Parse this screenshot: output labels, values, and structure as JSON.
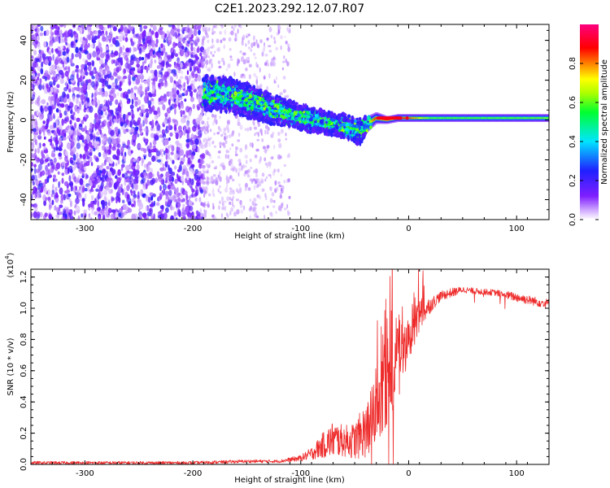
{
  "title": "C2E1.2023.292.12.07.R07",
  "colors": {
    "snr_line": "#ee2b2b",
    "speckle": "#8a2be2",
    "frame": "#000000"
  },
  "colorbar": {
    "label": "Normalized spectral amplitude",
    "range": [
      0.0,
      1.0
    ],
    "ticks": [
      0.0,
      0.2,
      0.4,
      0.6,
      0.8
    ],
    "tick_labels": [
      "0.0",
      "0.2",
      "0.4",
      "0.6",
      "0.8"
    ],
    "colormap": "rainbow (white → violet → blue → cyan → green → yellow → orange → red → magenta)"
  },
  "chart_data": [
    {
      "type": "heatmap",
      "panel": "top",
      "xlabel": "Height of straight line (km)",
      "ylabel": "Frequency (Hz)",
      "xlim": [
        -350,
        130
      ],
      "ylim": [
        -50,
        48
      ],
      "x_ticks": [
        -300,
        -200,
        -100,
        0,
        100
      ],
      "x_tick_labels": [
        "-300",
        "-200",
        "-100",
        "0",
        "100"
      ],
      "y_ticks": [
        -40,
        -20,
        0,
        20,
        40
      ],
      "y_tick_labels": [
        "-40",
        "-20",
        "0",
        "20",
        "40"
      ],
      "signal_trace": {
        "description": "Doppler trace",
        "x": [
          -190,
          -170,
          -150,
          -130,
          -110,
          -90,
          -70,
          -55,
          -45,
          -38,
          -30,
          -20,
          -10,
          0,
          20,
          60,
          100,
          130
        ],
        "y": [
          14,
          13,
          10,
          6,
          3,
          0,
          -2,
          -4,
          -6,
          -2,
          1,
          0,
          1,
          1,
          1,
          1,
          1,
          1
        ],
        "amplitude": [
          0.5,
          0.55,
          0.55,
          0.6,
          0.6,
          0.6,
          0.62,
          0.6,
          0.58,
          0.65,
          0.9,
          0.9,
          0.9,
          0.85,
          0.6,
          0.6,
          0.6,
          0.62
        ],
        "half_width_hz": [
          8,
          8,
          8,
          7,
          6,
          6,
          5,
          6,
          6,
          4,
          3,
          2,
          2,
          2,
          2,
          2,
          2,
          2
        ]
      },
      "noise_region": {
        "dense_x_range": [
          -350,
          -190
        ],
        "sparse_x_range": [
          -190,
          -110
        ],
        "amplitude_range": [
          0.02,
          0.15
        ]
      }
    },
    {
      "type": "line",
      "panel": "bottom",
      "xlabel": "Height of straight line (km)",
      "ylabel": "SNR (10 * v/v)",
      "y_multiplier_label": "(x10",
      "y_multiplier_exp": "4",
      "xlim": [
        -350,
        130
      ],
      "ylim": [
        0.0,
        1.25
      ],
      "x_ticks": [
        -300,
        -200,
        -100,
        0,
        100
      ],
      "x_tick_labels": [
        "-300",
        "-200",
        "-100",
        "0",
        "100"
      ],
      "y_ticks": [
        0.0,
        0.2,
        0.4,
        0.6,
        0.8,
        1.0,
        1.2
      ],
      "y_tick_labels": [
        "0.0",
        "0.2",
        "0.4",
        "0.6",
        "0.8",
        "1.0",
        "1.2"
      ],
      "series": [
        {
          "color": "#ee2b2b",
          "x": [
            -350,
            -300,
            -250,
            -200,
            -150,
            -120,
            -100,
            -90,
            -80,
            -70,
            -60,
            -50,
            -40,
            -30,
            -20,
            -15,
            -10,
            -5,
            0,
            5,
            10,
            15,
            20,
            30,
            40,
            50,
            60,
            80,
            100,
            120,
            130
          ],
          "y": [
            0.01,
            0.01,
            0.01,
            0.01,
            0.02,
            0.02,
            0.04,
            0.07,
            0.12,
            0.16,
            0.15,
            0.15,
            0.22,
            0.35,
            0.55,
            0.7,
            0.72,
            0.78,
            0.82,
            0.88,
            0.95,
            0.99,
            1.02,
            1.08,
            1.1,
            1.12,
            1.11,
            1.1,
            1.07,
            1.04,
            1.03
          ],
          "jitter": [
            0.01,
            0.01,
            0.01,
            0.01,
            0.01,
            0.01,
            0.02,
            0.04,
            0.08,
            0.12,
            0.1,
            0.12,
            0.18,
            0.22,
            0.3,
            0.35,
            0.2,
            0.15,
            0.15,
            0.12,
            0.12,
            0.08,
            0.05,
            0.03,
            0.03,
            0.02,
            0.02,
            0.02,
            0.03,
            0.03,
            0.03
          ]
        }
      ]
    }
  ]
}
